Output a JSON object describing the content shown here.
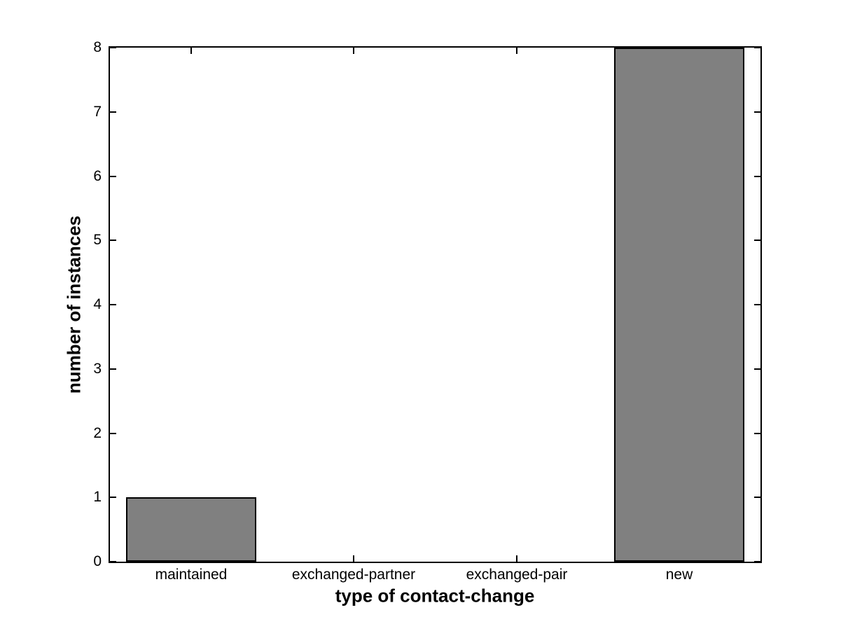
{
  "chart_data": {
    "type": "bar",
    "title": "",
    "categories": [
      "maintained",
      "exchanged-partner",
      "exchanged-pair",
      "new"
    ],
    "values": [
      1,
      0,
      0,
      8
    ],
    "xlabel": "type of contact-change",
    "ylabel": "number of instances",
    "ylim": [
      0,
      8
    ],
    "yticks": [
      "0",
      "1",
      "2",
      "3",
      "4",
      "5",
      "6",
      "7",
      "8"
    ],
    "bar_width_fraction": 0.8,
    "bar_color": "#808080",
    "bar_edge_color": "#000000",
    "axis_color": "#000000",
    "background_color": "#ffffff",
    "grid": false,
    "legend": null,
    "tick_direction": "in",
    "box": true
  }
}
